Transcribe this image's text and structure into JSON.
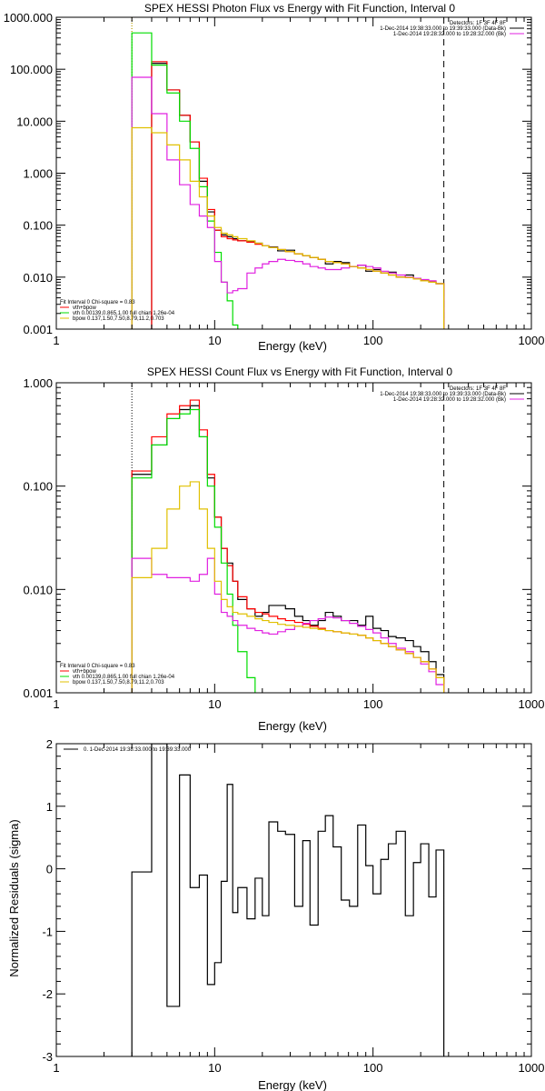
{
  "colors": {
    "axes": "#000000",
    "data": "#000000",
    "background": "#e020e0",
    "total": "#ff0000",
    "vth": "#00dd00",
    "bpow": "#e0c000",
    "marker": "#000000"
  },
  "chart_data": [
    {
      "type": "line",
      "title": "SPEX HESSI Photon Flux vs Energy with Fit Function, Interval 0",
      "xlabel": "Energy (keV)",
      "ylabel": "",
      "xscale": "log",
      "yscale": "log",
      "xlim": [
        1,
        1000
      ],
      "ylim": [
        0.001,
        1000
      ],
      "xticks": [
        1,
        10,
        100,
        1000
      ],
      "xtick_labels": [
        "1",
        "10",
        "100",
        "1000"
      ],
      "yticks": [
        0.001,
        0.01,
        0.1,
        1,
        10,
        100,
        1000
      ],
      "ytick_labels": [
        "0.001",
        "0.010",
        "0.100",
        "1.000",
        "10.000",
        "100.000",
        "1000.000"
      ],
      "grid": false,
      "legend_top": {
        "position": "top-right",
        "entries": [
          {
            "text": "Detectors: 1F 3F 4F 8F",
            "color": "#000000"
          },
          {
            "text": "1-Dec-2014 19:38:33.000 to 19:39:33.000 (Data-Bk)",
            "color": "#000000"
          },
          {
            "text": "1-Dec-2014 19:28:32.000 to 19:28:32.000 (Bk)",
            "color": "#e020e0"
          }
        ]
      },
      "legend_bottom": {
        "position": "bottom-left",
        "entries": [
          {
            "text": "Fit Interval 0   Chi-square = 0.83",
            "color": "#000000"
          },
          {
            "text": "vth+bpow",
            "color": "#ff0000"
          },
          {
            "text": "vth 0.00139,0.865,1.00  full chian 1.26e-04",
            "color": "#00dd00"
          },
          {
            "text": "bpow 0.137,1.50,7.50,8.79,11.2,0.703",
            "color": "#e0c000"
          }
        ]
      },
      "vlines": [
        {
          "x": 3,
          "style": "dotted",
          "color": "#000000"
        },
        {
          "x": 3,
          "style": "dotted",
          "color": "#e0c000"
        },
        {
          "x": 280,
          "style": "dashed",
          "color": "#000000"
        }
      ],
      "series": [
        {
          "color": "#000000",
          "edges": [
            3,
            4,
            5,
            6,
            7,
            8,
            9,
            10,
            11,
            12,
            13,
            14,
            16,
            18,
            20,
            22,
            25,
            28,
            32,
            36,
            40,
            45,
            50,
            56,
            63,
            71,
            80,
            90,
            100,
            112,
            125,
            140,
            160,
            180,
            200,
            225,
            250,
            280
          ],
          "values": [
            null,
            130,
            40,
            13,
            4,
            0.7,
            0.18,
            0.08,
            0.065,
            0.06,
            0.055,
            0.05,
            0.048,
            0.045,
            0.04,
            0.038,
            0.032,
            0.033,
            0.028,
            0.026,
            0.024,
            0.022,
            0.018,
            0.02,
            0.019,
            0.016,
            0.017,
            0.013,
            0.014,
            0.012,
            0.0125,
            0.01,
            0.011,
            0.0095,
            0.0085,
            0.008,
            0.0075
          ]
        },
        {
          "color": "#ff0000",
          "edges": [
            3,
            4,
            5,
            6,
            7,
            8,
            9,
            10,
            11,
            12,
            13,
            14,
            16,
            18,
            20,
            22,
            25,
            28,
            32,
            36,
            40,
            45,
            50,
            56,
            63,
            71,
            80,
            90,
            100,
            112,
            125,
            140,
            160,
            180,
            200,
            225,
            250,
            280
          ],
          "values": [
            null,
            140,
            40,
            13,
            4,
            0.8,
            0.2,
            0.08,
            0.06,
            0.055,
            0.052,
            0.05,
            0.047,
            0.043,
            0.04,
            0.037,
            0.034,
            0.031,
            0.028,
            0.026,
            0.024,
            0.022,
            0.02,
            0.019,
            0.018,
            0.016,
            0.015,
            0.014,
            0.013,
            0.012,
            0.011,
            0.01,
            0.0098,
            0.0092,
            0.0085,
            0.008,
            0.0075
          ]
        },
        {
          "color": "#00dd00",
          "edges": [
            3,
            4,
            5,
            6,
            7,
            8,
            9,
            10,
            11,
            12,
            13,
            14
          ],
          "values": [
            500,
            120,
            35,
            10,
            3,
            0.55,
            0.12,
            0.03,
            0.008,
            0.0035,
            0.0012
          ]
        },
        {
          "color": "#e020e0",
          "edges": [
            3,
            4,
            5,
            6,
            7,
            8,
            9,
            10,
            11,
            12,
            13,
            14,
            16,
            18,
            20,
            22,
            25,
            28,
            32,
            36,
            40,
            45,
            50,
            56,
            63,
            71,
            80,
            90,
            100,
            112,
            125,
            140,
            160,
            180,
            200,
            225,
            250,
            280
          ],
          "values": [
            70,
            14,
            1.8,
            0.6,
            0.25,
            0.15,
            0.09,
            0.02,
            0.008,
            0.005,
            0.0055,
            0.006,
            0.012,
            0.015,
            0.018,
            0.02,
            0.022,
            0.021,
            0.02,
            0.018,
            0.016,
            0.015,
            0.014,
            0.014,
            0.015,
            0.016,
            0.017,
            0.016,
            0.015,
            0.013,
            0.012,
            0.011,
            0.01,
            0.0095,
            0.009,
            0.0085,
            0.0075
          ]
        },
        {
          "color": "#e0c000",
          "edges": [
            3,
            4,
            5,
            6,
            7,
            8,
            9,
            10,
            11,
            12,
            13,
            14,
            16,
            18,
            20,
            22,
            25,
            28,
            32,
            36,
            40,
            45,
            50,
            56,
            63,
            71,
            80,
            90,
            100,
            112,
            125,
            140,
            160,
            180,
            200,
            225,
            250,
            280
          ],
          "values": [
            7.5,
            6,
            3.5,
            1.8,
            0.7,
            0.35,
            0.15,
            0.09,
            0.07,
            0.065,
            0.06,
            0.055,
            0.05,
            0.045,
            0.04,
            0.037,
            0.034,
            0.031,
            0.028,
            0.026,
            0.024,
            0.022,
            0.02,
            0.019,
            0.018,
            0.016,
            0.015,
            0.014,
            0.013,
            0.012,
            0.011,
            0.01,
            0.0098,
            0.0092,
            0.0085,
            0.008,
            0.0075
          ]
        }
      ]
    },
    {
      "type": "line",
      "title": "SPEX HESSI Count Flux vs Energy with Fit Function, Interval 0",
      "xlabel": "Energy (keV)",
      "ylabel": "",
      "xscale": "log",
      "yscale": "log",
      "xlim": [
        1,
        1000
      ],
      "ylim": [
        0.001,
        1
      ],
      "xticks": [
        1,
        10,
        100,
        1000
      ],
      "xtick_labels": [
        "1",
        "10",
        "100",
        "1000"
      ],
      "yticks": [
        0.001,
        0.01,
        0.1,
        1
      ],
      "ytick_labels": [
        "0.001",
        "0.010",
        "0.100",
        "1.000"
      ],
      "grid": false,
      "legend_top": {
        "position": "top-right",
        "entries": [
          {
            "text": "Detectors: 1F 3F 4F 8F",
            "color": "#000000"
          },
          {
            "text": "1-Dec-2014 19:38:33.000 to 19:39:33.000 (Data-Bk)",
            "color": "#000000"
          },
          {
            "text": "1-Dec-2014 19:28:32.000 to 19:28:32.000 (Bk)",
            "color": "#e020e0"
          }
        ]
      },
      "legend_bottom": {
        "position": "bottom-left",
        "entries": [
          {
            "text": "Fit Interval 0   Chi-square = 0.83",
            "color": "#000000"
          },
          {
            "text": "vth+bpow",
            "color": "#ff0000"
          },
          {
            "text": "vth 0.00139,0.865,1.00  full chian 1.26e-04",
            "color": "#00dd00"
          },
          {
            "text": "bpow 0.137,1.50,7.50,8.79,11.2,0.703",
            "color": "#e0c000"
          }
        ]
      },
      "vlines": [
        {
          "x": 3,
          "style": "dotted",
          "color": "#000000"
        },
        {
          "x": 280,
          "style": "dashed",
          "color": "#000000"
        }
      ],
      "series": [
        {
          "color": "#000000",
          "edges": [
            3,
            4,
            5,
            6,
            7,
            8,
            9,
            10,
            11,
            12,
            13,
            14,
            16,
            18,
            20,
            22,
            25,
            28,
            32,
            36,
            40,
            45,
            50,
            56,
            63,
            71,
            80,
            90,
            100,
            112,
            125,
            140,
            160,
            180,
            200,
            225,
            250,
            280
          ],
          "values": [
            0.13,
            0.25,
            0.45,
            0.55,
            0.6,
            0.3,
            0.12,
            0.05,
            0.025,
            0.018,
            0.012,
            0.008,
            0.0065,
            0.0055,
            0.006,
            0.007,
            0.007,
            0.0065,
            0.0055,
            0.005,
            0.0045,
            0.005,
            0.006,
            0.0055,
            0.005,
            0.005,
            0.0045,
            0.0055,
            0.0042,
            0.004,
            0.0035,
            0.0034,
            0.0032,
            0.0028,
            0.0025,
            0.002,
            0.0015
          ]
        },
        {
          "color": "#ff0000",
          "edges": [
            3,
            4,
            5,
            6,
            7,
            8,
            9,
            10,
            11,
            12,
            13,
            14,
            16,
            18,
            20,
            22,
            25,
            28,
            32,
            36,
            40,
            45,
            50,
            56,
            63,
            71,
            80,
            90,
            100,
            112,
            125,
            140,
            160,
            180,
            200,
            225,
            250,
            280
          ],
          "values": [
            0.14,
            0.3,
            0.5,
            0.6,
            0.68,
            0.35,
            0.13,
            0.05,
            0.025,
            0.017,
            0.012,
            0.0085,
            0.0065,
            0.006,
            0.0058,
            0.0055,
            0.0052,
            0.005,
            0.0048,
            0.0046,
            0.0044,
            0.0042,
            0.004,
            0.0039,
            0.0038,
            0.0037,
            0.0036,
            0.0034,
            0.0032,
            0.003,
            0.0028,
            0.0026,
            0.0024,
            0.0022,
            0.002,
            0.0017,
            0.0014
          ]
        },
        {
          "color": "#00dd00",
          "edges": [
            3,
            4,
            5,
            6,
            7,
            8,
            9,
            10,
            11,
            12,
            13,
            14,
            16,
            18
          ],
          "values": [
            0.12,
            0.25,
            0.45,
            0.5,
            0.55,
            0.3,
            0.1,
            0.04,
            0.018,
            0.009,
            0.0045,
            0.0025,
            0.0014
          ]
        },
        {
          "color": "#e020e0",
          "edges": [
            3,
            4,
            5,
            6,
            7,
            8,
            9,
            10,
            11,
            12,
            13,
            14,
            16,
            18,
            20,
            22,
            25,
            28,
            32,
            36,
            40,
            45,
            50,
            56,
            63,
            71,
            80,
            90,
            100,
            112,
            125,
            140,
            160,
            180,
            200,
            225,
            250,
            280
          ],
          "values": [
            0.02,
            0.014,
            0.013,
            0.013,
            0.012,
            0.014,
            0.02,
            0.009,
            0.006,
            0.0055,
            0.005,
            0.0045,
            0.0042,
            0.004,
            0.0038,
            0.0037,
            0.0039,
            0.0041,
            0.0044,
            0.0047,
            0.005,
            0.0052,
            0.0054,
            0.0053,
            0.005,
            0.0047,
            0.0044,
            0.0041,
            0.0038,
            0.0034,
            0.003,
            0.0027,
            0.0025,
            0.0022,
            0.0019,
            0.0016,
            0.0012
          ]
        },
        {
          "color": "#e0c000",
          "edges": [
            3,
            4,
            5,
            6,
            7,
            8,
            9,
            10,
            11,
            12,
            13,
            14,
            16,
            18,
            20,
            22,
            25,
            28,
            32,
            36,
            40,
            45,
            50,
            56,
            63,
            71,
            80,
            90,
            100,
            112,
            125,
            140,
            160,
            180,
            200,
            225,
            250,
            280
          ],
          "values": [
            0.013,
            0.025,
            0.06,
            0.1,
            0.11,
            0.06,
            0.025,
            0.012,
            0.008,
            0.0068,
            0.006,
            0.0058,
            0.0055,
            0.0052,
            0.005,
            0.0048,
            0.0046,
            0.0045,
            0.0044,
            0.0043,
            0.0042,
            0.0041,
            0.004,
            0.0039,
            0.0038,
            0.0037,
            0.0036,
            0.0034,
            0.0032,
            0.003,
            0.0028,
            0.0026,
            0.0024,
            0.0022,
            0.002,
            0.0017,
            0.0014
          ]
        }
      ]
    },
    {
      "type": "line",
      "title": "",
      "xlabel": "Energy (keV)",
      "ylabel": "Normalized Residuals (sigma)",
      "xscale": "log",
      "yscale": "linear",
      "xlim": [
        1,
        1000
      ],
      "ylim": [
        -3,
        2
      ],
      "xticks": [
        1,
        10,
        100,
        1000
      ],
      "xtick_labels": [
        "1",
        "10",
        "100",
        "1000"
      ],
      "yticks": [
        -3,
        -2,
        -1,
        0,
        1,
        2
      ],
      "ytick_labels": [
        "-3",
        "-2",
        "-1",
        "0",
        "1",
        "2"
      ],
      "grid": false,
      "legend_top": {
        "position": "top-left",
        "entries": [
          {
            "text": "0.  1-Dec-2014 19:38:33.000 to 19:39:33.000",
            "color": "#000000"
          }
        ]
      },
      "legend_bottom": {
        "position": "none",
        "entries": []
      },
      "vlines": [],
      "series": [
        {
          "color": "#000000",
          "edges": [
            3,
            4,
            5,
            6,
            7,
            8,
            9,
            10,
            11,
            12,
            13,
            14,
            16,
            18,
            20,
            22,
            25,
            28,
            32,
            36,
            40,
            45,
            50,
            56,
            63,
            71,
            80,
            90,
            100,
            112,
            125,
            140,
            160,
            180,
            200,
            225,
            250,
            280
          ],
          "values": [
            -0.05,
            2.0,
            -2.2,
            1.5,
            -0.3,
            -0.1,
            -1.85,
            -1.5,
            -0.2,
            1.35,
            -0.7,
            -0.3,
            -0.8,
            -0.15,
            -0.75,
            0.75,
            0.6,
            0.55,
            -0.6,
            0.45,
            -0.9,
            0.6,
            0.85,
            0.35,
            -0.5,
            -0.6,
            0.7,
            0.05,
            -0.4,
            0.15,
            0.4,
            0.6,
            -0.75,
            0.1,
            0.4,
            -0.45,
            0.3
          ]
        }
      ]
    }
  ]
}
